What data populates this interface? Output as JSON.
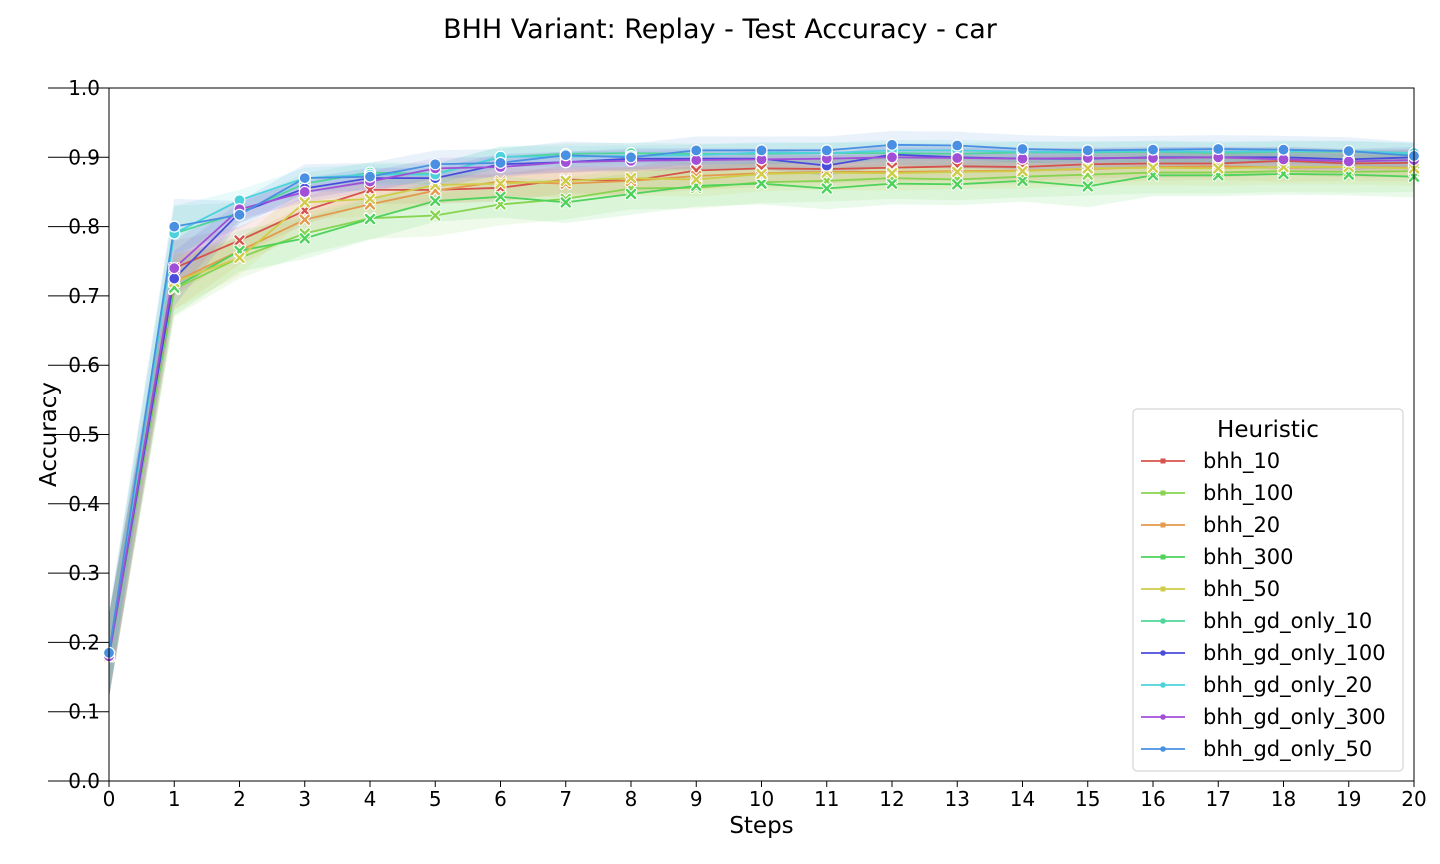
{
  "chart_data": {
    "type": "line",
    "title": "BHH Variant: Replay - Test Accuracy - car",
    "xlabel": "Steps",
    "ylabel": "Accuracy",
    "x": [
      0,
      1,
      2,
      3,
      4,
      5,
      6,
      7,
      8,
      9,
      10,
      11,
      12,
      13,
      14,
      15,
      16,
      17,
      18,
      19,
      20
    ],
    "xlim": [
      0,
      20
    ],
    "ylim": [
      0.0,
      1.0
    ],
    "yticks": [
      "0.0",
      "0.1",
      "0.2",
      "0.3",
      "0.4",
      "0.5",
      "0.6",
      "0.7",
      "0.8",
      "0.9",
      "1.0"
    ],
    "xticks": [
      "0",
      "1",
      "2",
      "3",
      "4",
      "5",
      "6",
      "7",
      "8",
      "9",
      "10",
      "11",
      "12",
      "13",
      "14",
      "15",
      "16",
      "17",
      "18",
      "19",
      "20"
    ],
    "grid": false,
    "legend": {
      "title": "Heuristic",
      "placement": "lower-right"
    },
    "series": [
      {
        "name": "bhh_10",
        "color": "#d6524b",
        "marker": "x",
        "band": 0.02,
        "values": [
          0.18,
          0.74,
          0.78,
          0.823,
          0.853,
          0.853,
          0.856,
          0.868,
          0.866,
          0.881,
          0.884,
          0.883,
          0.885,
          0.887,
          0.886,
          0.89,
          0.891,
          0.891,
          0.895,
          0.891,
          0.892
        ]
      },
      {
        "name": "bhh_100",
        "color": "#86d44f",
        "marker": "x",
        "band": 0.03,
        "values": [
          0.18,
          0.71,
          0.755,
          0.79,
          0.812,
          0.816,
          0.832,
          0.84,
          0.855,
          0.856,
          0.864,
          0.866,
          0.87,
          0.868,
          0.872,
          0.875,
          0.878,
          0.878,
          0.88,
          0.879,
          0.88
        ]
      },
      {
        "name": "bhh_20",
        "color": "#e39a4c",
        "marker": "x",
        "band": 0.02,
        "values": [
          0.18,
          0.72,
          0.765,
          0.81,
          0.832,
          0.852,
          0.865,
          0.862,
          0.866,
          0.873,
          0.877,
          0.879,
          0.879,
          0.88,
          0.881,
          0.883,
          0.886,
          0.887,
          0.885,
          0.886,
          0.885
        ]
      },
      {
        "name": "bhh_300",
        "color": "#4ed25c",
        "marker": "x",
        "band": 0.03,
        "values": [
          0.18,
          0.712,
          0.765,
          0.783,
          0.811,
          0.837,
          0.843,
          0.835,
          0.847,
          0.859,
          0.862,
          0.855,
          0.862,
          0.861,
          0.866,
          0.858,
          0.874,
          0.874,
          0.876,
          0.875,
          0.872
        ]
      },
      {
        "name": "bhh_50",
        "color": "#cfcc48",
        "marker": "x",
        "band": 0.025,
        "values": [
          0.18,
          0.72,
          0.755,
          0.835,
          0.84,
          0.86,
          0.862,
          0.866,
          0.87,
          0.868,
          0.876,
          0.878,
          0.877,
          0.879,
          0.88,
          0.884,
          0.885,
          0.884,
          0.886,
          0.886,
          0.884
        ]
      },
      {
        "name": "bhh_gd_only_10",
        "color": "#4fd69a",
        "marker": "o",
        "band": 0.015,
        "values": [
          0.18,
          0.79,
          0.82,
          0.862,
          0.878,
          0.876,
          0.9,
          0.905,
          0.906,
          0.905,
          0.905,
          0.906,
          0.906,
          0.905,
          0.907,
          0.907,
          0.908,
          0.906,
          0.908,
          0.908,
          0.905
        ]
      },
      {
        "name": "bhh_gd_only_100",
        "color": "#4a4ddb",
        "marker": "o",
        "band": 0.015,
        "values": [
          0.18,
          0.725,
          0.82,
          0.855,
          0.87,
          0.87,
          0.89,
          0.893,
          0.898,
          0.898,
          0.898,
          0.888,
          0.904,
          0.9,
          0.898,
          0.898,
          0.9,
          0.9,
          0.9,
          0.897,
          0.9
        ]
      },
      {
        "name": "bhh_gd_only_20",
        "color": "#4dd2dc",
        "marker": "o",
        "band": 0.015,
        "values": [
          0.18,
          0.79,
          0.838,
          0.87,
          0.875,
          0.875,
          0.901,
          0.901,
          0.902,
          0.903,
          0.907,
          0.906,
          0.91,
          0.91,
          0.908,
          0.908,
          0.909,
          0.908,
          0.909,
          0.909,
          0.906
        ]
      },
      {
        "name": "bhh_gd_only_300",
        "color": "#a24fd8",
        "marker": "o",
        "band": 0.015,
        "values": [
          0.18,
          0.74,
          0.825,
          0.85,
          0.865,
          0.884,
          0.886,
          0.893,
          0.895,
          0.896,
          0.897,
          0.898,
          0.9,
          0.899,
          0.898,
          0.899,
          0.899,
          0.9,
          0.897,
          0.894,
          0.896
        ]
      },
      {
        "name": "bhh_gd_only_50",
        "color": "#4a90e2",
        "marker": "o",
        "band": 0.02,
        "values": [
          0.185,
          0.8,
          0.817,
          0.87,
          0.872,
          0.89,
          0.892,
          0.903,
          0.9,
          0.91,
          0.91,
          0.91,
          0.918,
          0.917,
          0.912,
          0.91,
          0.911,
          0.912,
          0.911,
          0.909,
          0.902
        ]
      }
    ]
  }
}
